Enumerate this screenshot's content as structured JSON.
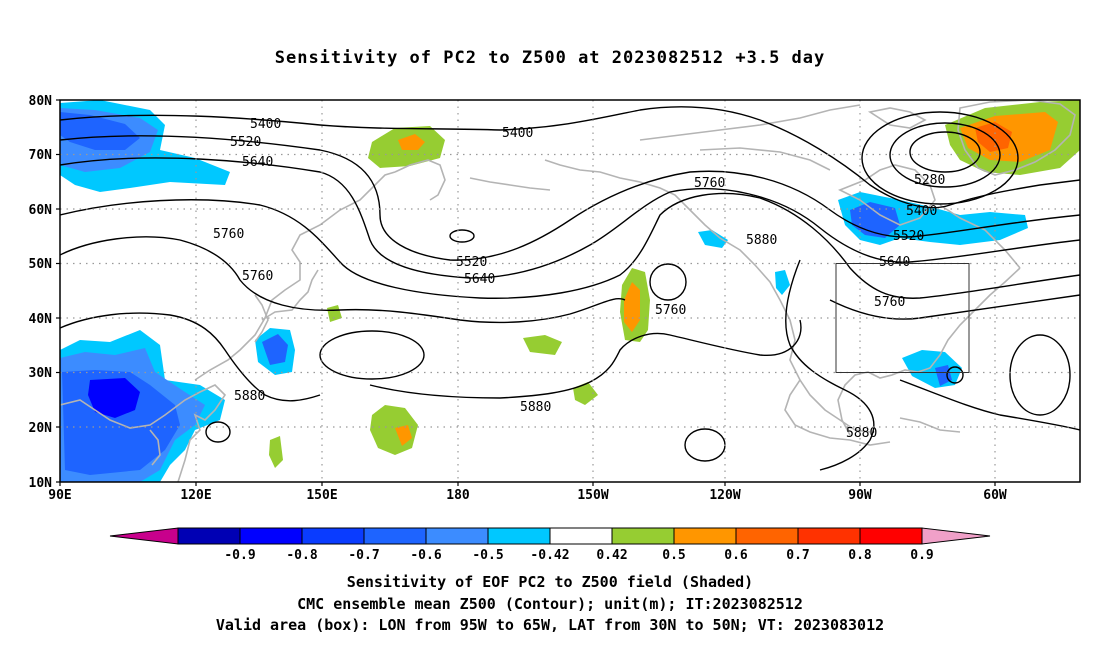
{
  "title": "Sensitivity of PC2 to Z500 at 2023082512 +3.5 day",
  "lat_labels": [
    "80N",
    "70N",
    "60N",
    "50N",
    "40N",
    "30N",
    "20N",
    "10N"
  ],
  "lon_labels": [
    "90E",
    "120E",
    "150E",
    "180",
    "150W",
    "120W",
    "90W",
    "60W"
  ],
  "contour_labels": [
    "5400",
    "5520",
    "5640",
    "5760",
    "5760",
    "5400",
    "5760",
    "5280",
    "5400",
    "5520",
    "5880",
    "5520",
    "5640",
    "5640",
    "5760",
    "5760",
    "5880",
    "5880",
    "5880"
  ],
  "colorbar": {
    "labels": [
      "-0.9",
      "-0.8",
      "-0.7",
      "-0.6",
      "-0.5",
      "-0.42",
      "0.42",
      "0.5",
      "0.6",
      "0.7",
      "0.8",
      "0.9"
    ],
    "colors": [
      "#c8008c",
      "#0000b4",
      "#0000ff",
      "#0a3cff",
      "#1e64ff",
      "#3c8cff",
      "#00c8ff",
      "#ffffff",
      "#96cd32",
      "#ff9600",
      "#ff6400",
      "#ff3200",
      "#ff0000",
      "#f0a0c8"
    ]
  },
  "shading_colors": {
    "dark_blue": "#0000ff",
    "blue": "#1e64ff",
    "mid_blue": "#3c8cff",
    "light_blue": "#00c8ff",
    "green": "#96cd32",
    "orange": "#ff9600",
    "dark_orange": "#ff6400"
  },
  "captions": [
    "Sensitivity of EOF PC2 to Z500 field (Shaded)",
    "CMC ensemble mean Z500 (Contour); unit(m); IT:2023082512",
    "Valid area (box): LON from 95W to 65W, LAT from 30N to 50N; VT: 2023083012"
  ]
}
